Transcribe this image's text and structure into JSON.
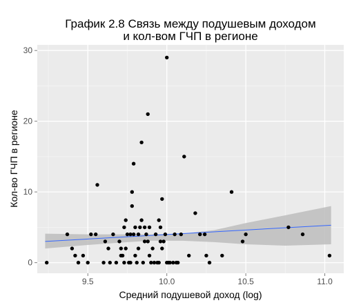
{
  "chart_data": {
    "type": "scatter",
    "title_lines": [
      "График 2.8 Связь между подушевым доходом",
      "и кол-вом ГЧП в регионе"
    ],
    "xlabel": "Средний подушевой доход (log)",
    "ylabel": "Кол-во ГЧП в регионе",
    "xlim": [
      9.18,
      11.12
    ],
    "ylim": [
      -1.5,
      30.8
    ],
    "x_ticks": [
      9.5,
      10.0,
      10.5,
      11.0
    ],
    "x_tick_labels": [
      "9.5",
      "10.0",
      "10.5",
      "11.0"
    ],
    "y_ticks": [
      0,
      10,
      20,
      30
    ],
    "y_tick_labels": [
      "0",
      "10",
      "20",
      "30"
    ],
    "grid": true,
    "background_color": "#ebebeb",
    "grid_color": "#ffffff",
    "point_color": "#000000",
    "trend_color": "#3366ff",
    "band_color": "#bdbdbd",
    "points": [
      [
        9.24,
        0
      ],
      [
        9.37,
        4
      ],
      [
        9.4,
        2
      ],
      [
        9.42,
        1
      ],
      [
        9.44,
        0
      ],
      [
        9.47,
        1
      ],
      [
        9.5,
        0
      ],
      [
        9.52,
        4
      ],
      [
        9.55,
        4
      ],
      [
        9.56,
        11
      ],
      [
        9.6,
        0
      ],
      [
        9.61,
        3
      ],
      [
        9.63,
        2
      ],
      [
        9.64,
        0
      ],
      [
        9.66,
        4
      ],
      [
        9.68,
        0
      ],
      [
        9.7,
        3
      ],
      [
        9.71,
        1
      ],
      [
        9.71,
        2
      ],
      [
        9.72,
        1
      ],
      [
        9.73,
        0
      ],
      [
        9.73,
        5
      ],
      [
        9.74,
        2
      ],
      [
        9.74,
        6
      ],
      [
        9.75,
        4
      ],
      [
        9.76,
        0
      ],
      [
        9.77,
        0
      ],
      [
        9.77,
        4
      ],
      [
        9.78,
        8
      ],
      [
        9.78,
        10
      ],
      [
        9.79,
        4
      ],
      [
        9.79,
        14
      ],
      [
        9.8,
        1
      ],
      [
        9.8,
        5
      ],
      [
        9.81,
        0
      ],
      [
        9.82,
        2
      ],
      [
        9.82,
        4
      ],
      [
        9.83,
        5
      ],
      [
        9.84,
        6
      ],
      [
        9.84,
        17
      ],
      [
        9.85,
        0
      ],
      [
        9.86,
        3
      ],
      [
        9.86,
        5
      ],
      [
        9.87,
        4
      ],
      [
        9.88,
        3
      ],
      [
        9.88,
        21
      ],
      [
        9.89,
        1
      ],
      [
        9.89,
        5
      ],
      [
        9.9,
        0
      ],
      [
        9.91,
        2
      ],
      [
        9.92,
        0
      ],
      [
        9.93,
        4
      ],
      [
        9.94,
        0
      ],
      [
        9.95,
        0
      ],
      [
        9.95,
        6
      ],
      [
        9.96,
        3
      ],
      [
        9.96,
        5
      ],
      [
        9.97,
        9
      ],
      [
        9.97,
        2
      ],
      [
        9.98,
        3
      ],
      [
        9.99,
        4
      ],
      [
        10.0,
        0
      ],
      [
        10.0,
        29
      ],
      [
        10.01,
        0
      ],
      [
        10.02,
        0
      ],
      [
        10.04,
        0
      ],
      [
        10.05,
        4
      ],
      [
        10.06,
        0
      ],
      [
        10.07,
        0
      ],
      [
        10.09,
        4
      ],
      [
        10.11,
        15
      ],
      [
        10.14,
        1
      ],
      [
        10.18,
        7
      ],
      [
        10.21,
        4
      ],
      [
        10.24,
        4
      ],
      [
        10.25,
        1
      ],
      [
        10.27,
        0
      ],
      [
        10.35,
        1
      ],
      [
        10.41,
        10
      ],
      [
        10.48,
        3
      ],
      [
        10.5,
        4
      ],
      [
        10.77,
        5
      ],
      [
        10.86,
        4
      ],
      [
        11.03,
        1
      ]
    ],
    "trend_line": {
      "x": [
        9.23,
        11.04
      ],
      "y": [
        3.0,
        5.3
      ]
    },
    "confidence_band": {
      "x": [
        9.23,
        9.5,
        9.75,
        9.9,
        10.1,
        10.3,
        10.5,
        10.75,
        11.04
      ],
      "lower": [
        2.0,
        2.5,
        2.9,
        3.1,
        3.1,
        2.9,
        2.6,
        2.4,
        2.6
      ],
      "upper": [
        4.1,
        4.0,
        4.0,
        4.0,
        4.1,
        4.6,
        5.6,
        6.7,
        8.0
      ]
    }
  }
}
